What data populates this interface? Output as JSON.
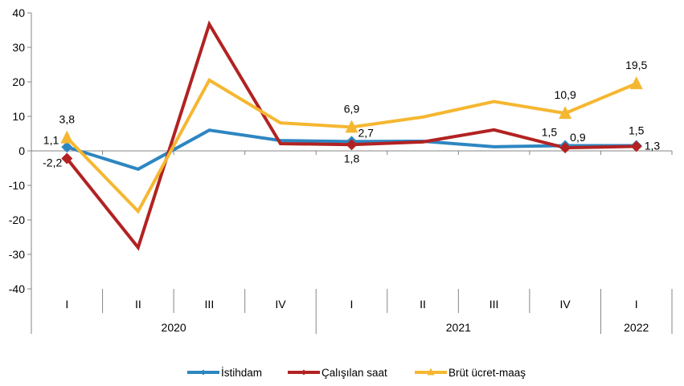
{
  "chart_data": {
    "type": "line",
    "title": "",
    "xlabel": "",
    "ylabel": "",
    "ylim": [
      -40,
      40
    ],
    "yticks": [
      40,
      30,
      20,
      10,
      0,
      -10,
      -20,
      -30,
      -40
    ],
    "ytick_labels": [
      "40",
      "30",
      "20",
      "10",
      "0",
      "-10",
      "-20",
      "-30",
      "-40"
    ],
    "categories": [
      "I",
      "II",
      "III",
      "IV",
      "I",
      "II",
      "III",
      "IV",
      "I"
    ],
    "year_groups": [
      {
        "label": "2020",
        "span": 4
      },
      {
        "label": "2021",
        "span": 4
      },
      {
        "label": "2022",
        "span": 1
      }
    ],
    "legend_position": "bottom",
    "series": [
      {
        "name": "İstihdam",
        "color": "#2E86C1",
        "marker": "diamond",
        "values": [
          1.1,
          -5.3,
          6.0,
          3.0,
          2.7,
          2.8,
          1.2,
          1.5,
          1.5
        ],
        "labels": [
          {
            "index": 0,
            "text": "1,1",
            "pos": "left"
          },
          {
            "index": 4,
            "text": "2,7",
            "pos": "right"
          },
          {
            "index": 7,
            "text": "1,5",
            "pos": "upleft"
          },
          {
            "index": 8,
            "text": "1,5",
            "pos": "up"
          }
        ]
      },
      {
        "name": "Çalışılan saat",
        "color": "#B22222",
        "marker": "diamond",
        "values": [
          -2.2,
          -28.0,
          36.7,
          2.1,
          1.8,
          2.6,
          6.1,
          0.9,
          1.3
        ],
        "labels": [
          {
            "index": 0,
            "text": "-2,2",
            "pos": "left"
          },
          {
            "index": 4,
            "text": "1,8",
            "pos": "below"
          },
          {
            "index": 7,
            "text": "0,9",
            "pos": "upright"
          },
          {
            "index": 8,
            "text": "1,3",
            "pos": "right"
          }
        ]
      },
      {
        "name": "Brüt ücret-maaş",
        "color": "#F5B731",
        "marker": "triangle",
        "values": [
          3.8,
          -17.5,
          20.5,
          8.1,
          6.9,
          9.8,
          14.3,
          10.9,
          19.5
        ],
        "labels": [
          {
            "index": 0,
            "text": "3,8",
            "pos": "up"
          },
          {
            "index": 4,
            "text": "6,9",
            "pos": "up"
          },
          {
            "index": 7,
            "text": "10,9",
            "pos": "up"
          },
          {
            "index": 8,
            "text": "19,5",
            "pos": "up"
          }
        ]
      }
    ],
    "marker_points": [
      0,
      4,
      7,
      8
    ]
  }
}
